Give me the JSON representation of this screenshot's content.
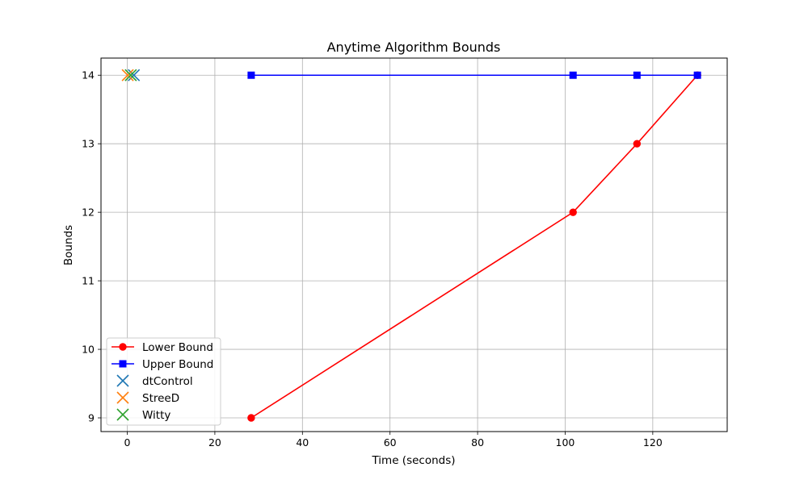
{
  "chart_data": {
    "type": "line",
    "title": "Anytime Algorithm Bounds",
    "xlabel": "Time (seconds)",
    "ylabel": "Bounds",
    "xlim": [
      -6,
      137
    ],
    "ylim": [
      8.8,
      14.25
    ],
    "xticks": [
      0,
      20,
      40,
      60,
      80,
      100,
      120
    ],
    "yticks": [
      9,
      10,
      11,
      12,
      13,
      14
    ],
    "grid": true,
    "legend_position": "lower-left",
    "series": [
      {
        "name": "Lower Bound",
        "kind": "line",
        "color": "#ff0000",
        "marker": "circle",
        "x": [
          28.3,
          101.8,
          116.4,
          130.2
        ],
        "y": [
          9,
          12,
          13,
          14
        ]
      },
      {
        "name": "Upper Bound",
        "kind": "line",
        "color": "#0000ff",
        "marker": "square",
        "x": [
          28.3,
          101.8,
          116.4,
          130.2
        ],
        "y": [
          14,
          14,
          14,
          14
        ]
      },
      {
        "name": "dtControl",
        "kind": "scatter",
        "color": "#1f77b4",
        "marker": "x",
        "x": [
          1.5
        ],
        "y": [
          14
        ]
      },
      {
        "name": "StreeD",
        "kind": "scatter",
        "color": "#ff7f0e",
        "marker": "x",
        "x": [
          0.1
        ],
        "y": [
          14
        ]
      },
      {
        "name": "Witty",
        "kind": "scatter",
        "color": "#2ca02c",
        "marker": "x",
        "x": [
          0.8
        ],
        "y": [
          14
        ]
      }
    ]
  }
}
